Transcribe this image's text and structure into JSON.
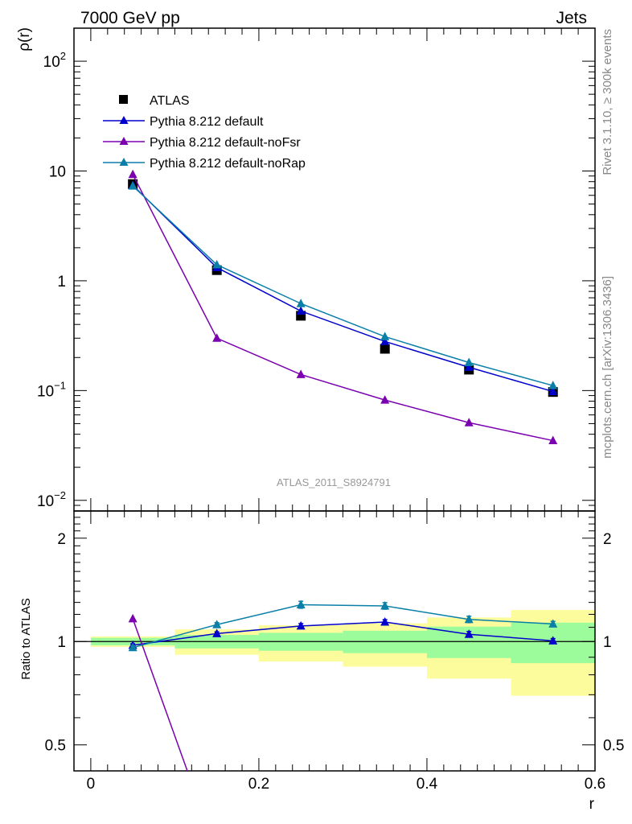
{
  "header": {
    "left": "7000 GeV pp",
    "right": "Jets"
  },
  "side_labels": {
    "rivet": "Rivet 3.1.10, ≥ 300k events",
    "mcplots": "mcplots.cern.ch [arXiv:1306.3436]"
  },
  "watermark": "ATLAS_2011_S8924791",
  "colors": {
    "atlas": "#000000",
    "default": "#0000cc",
    "noFsr": "#7a00b0",
    "noRap": "#0a7fa8",
    "band_inner": "#9cfc9c",
    "band_outer": "#fcfc9c"
  },
  "chart_data": [
    {
      "type": "line",
      "panel": "main",
      "ylabel": "ρ(r)",
      "yscale": "log",
      "ylim": [
        0.008,
        200
      ],
      "xlim": [
        -0.02,
        0.6
      ],
      "y_ticks": [
        {
          "value": 100,
          "base": "10",
          "exp": "2"
        },
        {
          "value": 10,
          "base": "10",
          "exp": ""
        },
        {
          "value": 1,
          "base": "1",
          "exp": ""
        },
        {
          "value": 0.1,
          "base": "10",
          "exp": "−1"
        },
        {
          "value": 0.01,
          "base": "10",
          "exp": "−2"
        }
      ],
      "legend": {
        "position": "top-left",
        "entries": [
          "ATLAS",
          "Pythia 8.212 default",
          "Pythia 8.212 default-noFsr",
          "Pythia 8.212 default-noRap"
        ]
      },
      "x": [
        0.05,
        0.15,
        0.25,
        0.35,
        0.45,
        0.55
      ],
      "series": [
        {
          "name": "ATLAS",
          "style": "square",
          "values": [
            7.6,
            1.25,
            0.48,
            0.24,
            0.155,
            0.097
          ]
        },
        {
          "name": "Pythia 8.212 default",
          "style": "line",
          "values": [
            7.4,
            1.32,
            0.53,
            0.28,
            0.163,
            0.098
          ]
        },
        {
          "name": "Pythia 8.212 default-noFsr",
          "style": "line",
          "values": [
            9.3,
            0.3,
            0.14,
            0.082,
            0.051,
            0.035
          ]
        },
        {
          "name": "Pythia 8.212 default-noRap",
          "style": "line",
          "values": [
            7.3,
            1.4,
            0.62,
            0.31,
            0.18,
            0.111
          ]
        }
      ]
    },
    {
      "type": "line",
      "panel": "ratio",
      "ylabel": "Ratio to ATLAS",
      "xlabel": "r",
      "yscale": "log",
      "ylim": [
        0.42,
        2.4
      ],
      "y_ticks": [
        {
          "value": 2,
          "label": "2"
        },
        {
          "value": 1,
          "label": "1"
        },
        {
          "value": 0.5,
          "label": "0.5"
        }
      ],
      "x_ticks": [
        {
          "value": 0,
          "label": "0"
        },
        {
          "value": 0.2,
          "label": "0.2"
        },
        {
          "value": 0.4,
          "label": "0.4"
        },
        {
          "value": 0.6,
          "label": "0.6"
        }
      ],
      "bands": [
        {
          "xlo": 0.0,
          "xhi": 0.1,
          "inner": [
            0.975,
            1.025
          ],
          "outer": [
            0.965,
            1.035
          ]
        },
        {
          "xlo": 0.1,
          "xhi": 0.2,
          "inner": [
            0.955,
            1.045
          ],
          "outer": [
            0.915,
            1.085
          ]
        },
        {
          "xlo": 0.2,
          "xhi": 0.3,
          "inner": [
            0.94,
            1.06
          ],
          "outer": [
            0.875,
            1.115
          ]
        },
        {
          "xlo": 0.3,
          "xhi": 0.4,
          "inner": [
            0.925,
            1.075
          ],
          "outer": [
            0.845,
            1.13
          ]
        },
        {
          "xlo": 0.4,
          "xhi": 0.5,
          "inner": [
            0.895,
            1.105
          ],
          "outer": [
            0.78,
            1.175
          ]
        },
        {
          "xlo": 0.5,
          "xhi": 0.6,
          "inner": [
            0.865,
            1.135
          ],
          "outer": [
            0.695,
            1.235
          ]
        }
      ],
      "x": [
        0.05,
        0.15,
        0.25,
        0.35,
        0.45,
        0.55
      ],
      "series": [
        {
          "name": "Pythia 8.212 default",
          "values": [
            0.975,
            1.055,
            1.11,
            1.14,
            1.05,
            1.005
          ],
          "errors": [
            0.01,
            0.012,
            0.018,
            0.018,
            0.02,
            0.015
          ]
        },
        {
          "name": "Pythia 8.212 default-noFsr",
          "values": [
            1.165,
            0.4
          ],
          "x": [
            0.05,
            0.118
          ]
        },
        {
          "name": "Pythia 8.212 default-noRap",
          "values": [
            0.96,
            1.12,
            1.28,
            1.27,
            1.16,
            1.125
          ],
          "errors": [
            0.012,
            0.015,
            0.03,
            0.028,
            0.025,
            0.02
          ]
        }
      ]
    }
  ]
}
